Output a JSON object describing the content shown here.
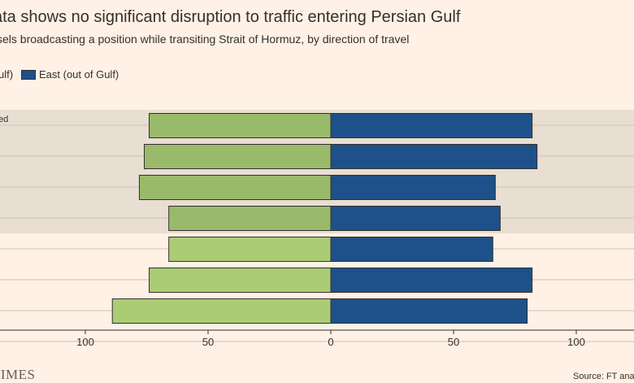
{
  "header": {
    "title": "ata shows no significant disruption to traffic entering Persian Gulf",
    "subtitle": "sels broadcasting a position while transiting Strait of Hormuz, by direction of travel"
  },
  "legend": {
    "west_label": "ulf)",
    "east_label": "East (out of Gulf)"
  },
  "annotation": {
    "line1": "ed",
    "line2": "."
  },
  "footer": {
    "logo": "TIMES",
    "source": "Source: FT ana"
  },
  "colors": {
    "background": "#fff1e5",
    "shaded_band": "#e9ded2",
    "west_shaded": "#9aba6b",
    "west_normal": "#abcc74",
    "east": "#1e5189",
    "bar_outline": "#33302e",
    "grid": "#ccc1b7",
    "text": "#33302e"
  },
  "chart_data": {
    "type": "bar",
    "orientation": "horizontal-diverging",
    "title": "ata shows no significant disruption to traffic entering Persian Gulf",
    "subtitle": "sels broadcasting a position while transiting Strait of Hormuz, by direction of travel",
    "xlim": [
      -130,
      125
    ],
    "x_ticks": [
      -100,
      -50,
      0,
      50,
      100
    ],
    "x_tick_labels": [
      "100",
      "50",
      "0",
      "50",
      "100"
    ],
    "shaded_rows": [
      0,
      1,
      2,
      3
    ],
    "series": [
      {
        "name": "ulf)",
        "direction": "left",
        "values": [
          74,
          76,
          78,
          66,
          66,
          74,
          89
        ]
      },
      {
        "name": "East (out of Gulf)",
        "direction": "right",
        "values": [
          82,
          84,
          67,
          69,
          66,
          82,
          80
        ]
      }
    ],
    "grid": true,
    "legend_position": "top-left"
  }
}
